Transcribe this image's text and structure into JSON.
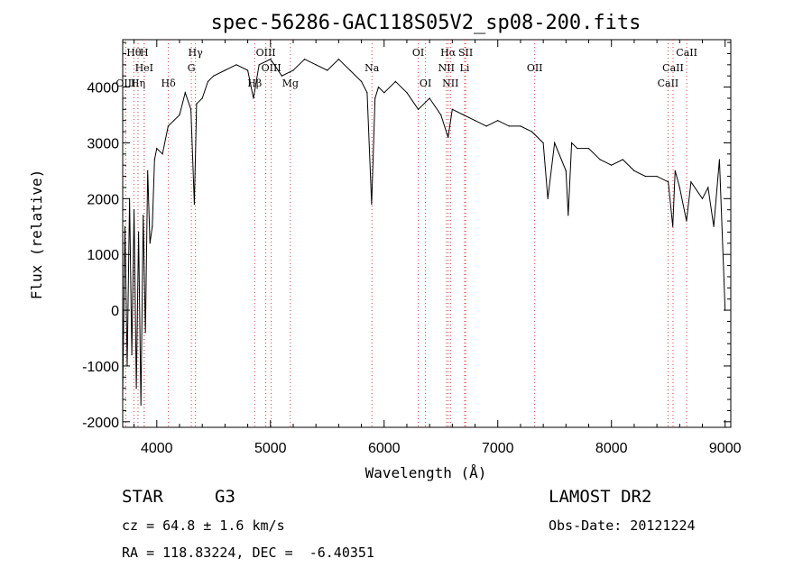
{
  "chart_data": {
    "type": "line",
    "title": "spec-56286-GAC118S05V2_sp08-200.fits",
    "xlabel": "Wavelength (Å)",
    "ylabel": "Flux (relative)",
    "xlim": [
      3700,
      9050
    ],
    "ylim": [
      -2100,
      4850
    ],
    "xticks": [
      4000,
      5000,
      6000,
      7000,
      8000,
      9000
    ],
    "yticks": [
      -2000,
      -1000,
      0,
      1000,
      2000,
      3000,
      4000
    ],
    "grid": false,
    "series": [
      {
        "x": [
          3700,
          3720,
          3740,
          3760,
          3780,
          3800,
          3820,
          3840,
          3860,
          3880,
          3900,
          3920,
          3940,
          3960,
          3980,
          4000,
          4050,
          4100,
          4150,
          4200,
          4250,
          4300,
          4330,
          4350,
          4400,
          4450,
          4500,
          4600,
          4700,
          4800,
          4850,
          4900,
          5000,
          5100,
          5200,
          5300,
          5400,
          5500,
          5600,
          5700,
          5800,
          5850,
          5890,
          5920,
          5950,
          6000,
          6100,
          6200,
          6300,
          6400,
          6500,
          6563,
          6600,
          6700,
          6800,
          6900,
          7000,
          7100,
          7200,
          7300,
          7400,
          7440,
          7500,
          7600,
          7620,
          7650,
          7700,
          7800,
          7900,
          8000,
          8100,
          8200,
          8300,
          8400,
          8500,
          8540,
          8560,
          8600,
          8660,
          8700,
          8800,
          8850,
          8900,
          8950,
          9000
        ],
        "values": [
          -1500,
          1500,
          -1000,
          2000,
          -800,
          1800,
          -1400,
          1400,
          -1700,
          1700,
          -400,
          2500,
          1200,
          1500,
          2700,
          2900,
          2800,
          3300,
          3400,
          3500,
          3900,
          3600,
          1900,
          3700,
          3800,
          4100,
          4200,
          4300,
          4400,
          4300,
          3800,
          4400,
          4500,
          4200,
          4300,
          4500,
          4400,
          4300,
          4500,
          4300,
          4100,
          3900,
          1900,
          3800,
          4000,
          3900,
          4100,
          3900,
          3600,
          3800,
          3500,
          3100,
          3600,
          3500,
          3400,
          3300,
          3400,
          3300,
          3300,
          3200,
          3000,
          2000,
          3000,
          2500,
          1700,
          3000,
          2900,
          2900,
          2700,
          2600,
          2700,
          2500,
          2400,
          2400,
          2300,
          1500,
          2500,
          2200,
          1600,
          2300,
          2000,
          2200,
          1500,
          2700,
          0
        ]
      }
    ],
    "lines": [
      {
        "label": "Hθ",
        "wl": 3798,
        "row": 0
      },
      {
        "label": "H",
        "wl": 3889,
        "row": 0
      },
      {
        "label": "HeI",
        "wl": 3889,
        "row": 1
      },
      {
        "label": "OIII",
        "wl": 3727,
        "row": 2
      },
      {
        "label": "Hη",
        "wl": 3835,
        "row": 2
      },
      {
        "label": "Hδ",
        "wl": 4102,
        "row": 2
      },
      {
        "label": "Hγ",
        "wl": 4340,
        "row": 0
      },
      {
        "label": "G",
        "wl": 4304,
        "row": 1
      },
      {
        "label": "OIII",
        "wl": 4959,
        "row": 0
      },
      {
        "label": "OIII",
        "wl": 5007,
        "row": 1
      },
      {
        "label": "Hβ",
        "wl": 4861,
        "row": 2
      },
      {
        "label": "Mg",
        "wl": 5175,
        "row": 2
      },
      {
        "label": "Na",
        "wl": 5893,
        "row": 1
      },
      {
        "label": "OI",
        "wl": 6300,
        "row": 0
      },
      {
        "label": "OI",
        "wl": 6364,
        "row": 2
      },
      {
        "label": "Hα",
        "wl": 6563,
        "row": 0
      },
      {
        "label": "SII",
        "wl": 6717,
        "row": 0
      },
      {
        "label": "NII",
        "wl": 6548,
        "row": 1
      },
      {
        "label": "Li",
        "wl": 6708,
        "row": 1
      },
      {
        "label": "NII",
        "wl": 6584,
        "row": 2
      },
      {
        "label": "OII",
        "wl": 7325,
        "row": 1
      },
      {
        "label": "CaII",
        "wl": 8662,
        "row": 0
      },
      {
        "label": "CaII",
        "wl": 8542,
        "row": 1
      },
      {
        "label": "CaII",
        "wl": 8498,
        "row": 2
      }
    ]
  },
  "info": {
    "class": "STAR",
    "subclass": "G3",
    "survey": "LAMOST DR2",
    "cz": "cz = 64.8 ± 1.6 km/s",
    "obsdate": "Obs-Date: 20121224",
    "radec": "RA = 118.83224, DEC =  -6.40351"
  }
}
